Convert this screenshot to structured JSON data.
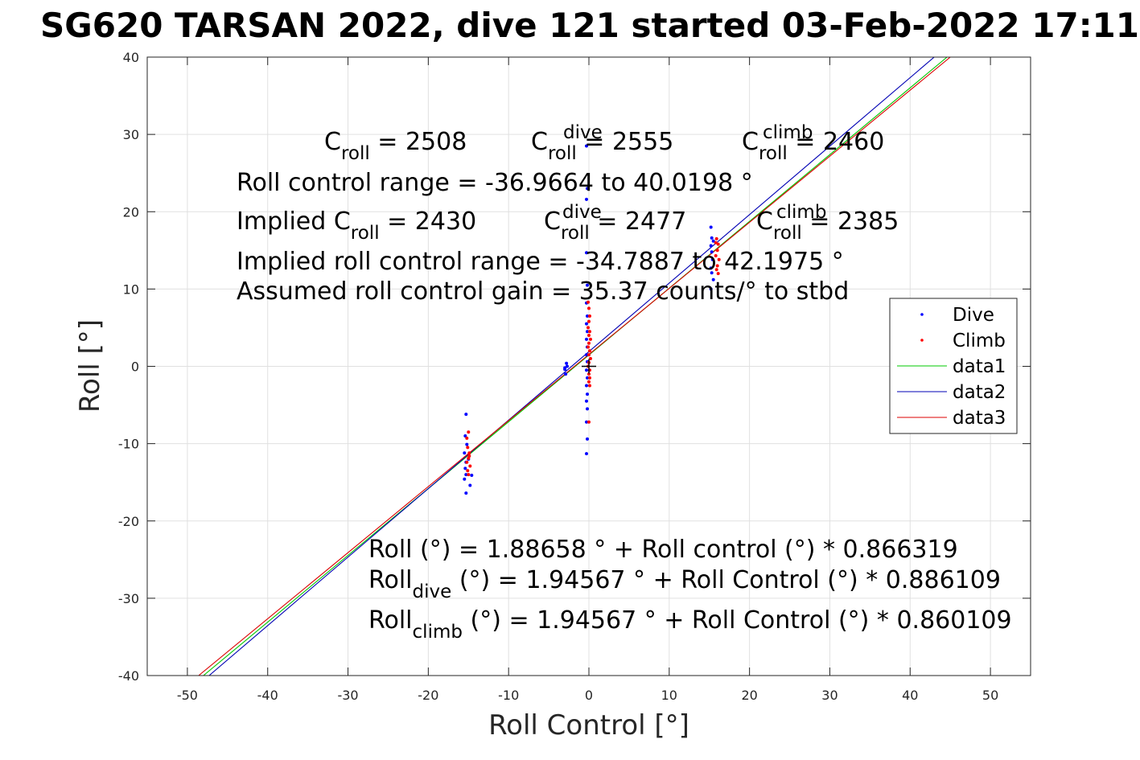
{
  "chart_data": {
    "type": "scatter",
    "title": "SG620 TARSAN 2022, dive 121 started 03-Feb-2022 17:11",
    "xlabel": "Roll Control [°]",
    "ylabel": "Roll [°]",
    "xlim": [
      -55,
      55
    ],
    "ylim": [
      -40,
      40
    ],
    "xticks": [
      -50,
      -40,
      -30,
      -20,
      -10,
      0,
      10,
      20,
      30,
      40,
      50
    ],
    "yticks": [
      -40,
      -30,
      -20,
      -10,
      0,
      10,
      20,
      30,
      40
    ],
    "grid": true,
    "legend_position": "east",
    "colors": {
      "dive": "#0000ff",
      "climb": "#ff0000",
      "data1": "#00c800",
      "data2": "#0000b4",
      "data3": "#dc0000",
      "grid": "#e0e0e0",
      "axis": "#262626"
    },
    "series": [
      {
        "name": "Dive",
        "kind": "points",
        "points": [
          [
            -15.3,
            -6.2
          ],
          [
            -15.4,
            -9.0
          ],
          [
            -15.2,
            -10.1
          ],
          [
            -15.5,
            -11.2
          ],
          [
            -15.3,
            -12.4
          ],
          [
            -15.4,
            -13.2
          ],
          [
            -15.3,
            -14.0
          ],
          [
            -15.5,
            -14.6
          ],
          [
            -15.3,
            -16.4
          ],
          [
            -14.8,
            -15.4
          ],
          [
            -14.6,
            -14.1
          ],
          [
            -15.0,
            -12.0
          ],
          [
            -2.8,
            0.4
          ],
          [
            -3.0,
            -0.4
          ],
          [
            -2.9,
            -1.0
          ],
          [
            -2.7,
            0.0
          ],
          [
            -3.0,
            -0.2
          ],
          [
            -0.3,
            28.5
          ],
          [
            -0.2,
            23.0
          ],
          [
            -0.3,
            21.6
          ],
          [
            -0.3,
            14.7
          ],
          [
            -0.2,
            10.5
          ],
          [
            -0.3,
            8.2
          ],
          [
            -0.2,
            6.5
          ],
          [
            -0.3,
            5.5
          ],
          [
            -0.2,
            4.5
          ],
          [
            -0.3,
            3.5
          ],
          [
            -0.2,
            2.5
          ],
          [
            -0.3,
            1.5
          ],
          [
            -0.2,
            0.6
          ],
          [
            -0.3,
            -0.5
          ],
          [
            -0.2,
            -1.5
          ],
          [
            -0.3,
            -2.5
          ],
          [
            -0.2,
            -3.6
          ],
          [
            -0.3,
            -4.5
          ],
          [
            -0.2,
            -5.5
          ],
          [
            -0.3,
            -7.2
          ],
          [
            -0.2,
            -9.4
          ],
          [
            -0.3,
            -11.3
          ],
          [
            15.2,
            18.0
          ],
          [
            15.3,
            16.6
          ],
          [
            15.5,
            16.2
          ],
          [
            15.2,
            15.6
          ],
          [
            15.3,
            14.8
          ],
          [
            15.4,
            13.8
          ],
          [
            15.2,
            12.7
          ],
          [
            15.3,
            12.1
          ],
          [
            15.5,
            11.2
          ],
          [
            15.2,
            10.0
          ]
        ]
      },
      {
        "name": "Climb",
        "kind": "points",
        "points": [
          [
            -15.0,
            -8.5
          ],
          [
            -15.2,
            -9.3
          ],
          [
            -15.1,
            -10.5
          ],
          [
            -14.9,
            -11.2
          ],
          [
            -15.0,
            -11.9
          ],
          [
            -15.2,
            -12.4
          ],
          [
            -14.8,
            -12.9
          ],
          [
            -15.1,
            -13.5
          ],
          [
            -15.0,
            -14.0
          ],
          [
            -14.9,
            -11.6
          ],
          [
            -0.1,
            8.3
          ],
          [
            0.0,
            7.5
          ],
          [
            0.1,
            6.5
          ],
          [
            0.0,
            5.8
          ],
          [
            -0.1,
            5.0
          ],
          [
            0.1,
            4.5
          ],
          [
            0.0,
            4.0
          ],
          [
            0.2,
            3.5
          ],
          [
            0.0,
            3.0
          ],
          [
            -0.1,
            2.5
          ],
          [
            0.1,
            2.0
          ],
          [
            0.0,
            1.5
          ],
          [
            0.2,
            1.0
          ],
          [
            0.0,
            0.5
          ],
          [
            -0.1,
            0.0
          ],
          [
            0.1,
            -0.5
          ],
          [
            0.0,
            -1.0
          ],
          [
            0.1,
            -1.5
          ],
          [
            0.0,
            -2.0
          ],
          [
            0.1,
            -2.5
          ],
          [
            0.0,
            -7.2
          ],
          [
            15.9,
            16.5
          ],
          [
            16.1,
            15.8
          ],
          [
            16.0,
            15.0
          ],
          [
            15.8,
            14.3
          ],
          [
            16.2,
            13.8
          ],
          [
            16.0,
            13.0
          ],
          [
            15.9,
            12.5
          ],
          [
            16.1,
            12.0
          ],
          [
            15.8,
            16.0
          ]
        ]
      },
      {
        "name": "data1",
        "kind": "line",
        "points": [
          [
            -48.0,
            -40.0
          ],
          [
            44.6,
            40.0
          ]
        ]
      },
      {
        "name": "data2",
        "kind": "line",
        "points": [
          [
            -47.3,
            -40.0
          ],
          [
            43.0,
            40.0
          ]
        ]
      },
      {
        "name": "data3",
        "kind": "line",
        "points": [
          [
            -48.6,
            -40.0
          ],
          [
            45.0,
            40.0
          ]
        ]
      }
    ],
    "annotations": {
      "coeff_row": [
        {
          "base": "C",
          "sub": "roll",
          "sup": "",
          "value": " = 2508"
        },
        {
          "base": "C",
          "sub": "roll",
          "sup": "dive",
          "value": " = 2555"
        },
        {
          "base": "C",
          "sub": "roll",
          "sup": "climb",
          "value": " = 2460"
        }
      ],
      "range_line": "Roll control range = -36.9664 to 40.0198 °",
      "implied_row": [
        {
          "pre": "Implied ",
          "base": "C",
          "sub": "roll",
          "sup": "",
          "value": " = 2430"
        },
        {
          "pre": "",
          "base": "C",
          "sub": "roll",
          "sup": "dive",
          "value": " = 2477"
        },
        {
          "pre": "",
          "base": "C",
          "sub": "roll",
          "sup": "climb",
          "value": " = 2385"
        }
      ],
      "implied_range_line": "Implied roll control range = -34.7887 to 42.1975 °",
      "gain_line": "Assumed roll control gain = 35.37 counts/° to stbd",
      "fit_line": "Roll (°) = 1.88658 ° + Roll control (°) * 0.866319",
      "fit_dive": {
        "base": "Roll",
        "sub": "dive",
        "rest": " (°) = 1.94567 ° + Roll Control (°) * 0.886109"
      },
      "fit_climb": {
        "base": "Roll",
        "sub": "climb",
        "rest": " (°) = 1.94567 ° + Roll Control (°) * 0.860109"
      }
    },
    "center_marker": {
      "x": 0,
      "y": 0,
      "symbol": "+"
    }
  }
}
